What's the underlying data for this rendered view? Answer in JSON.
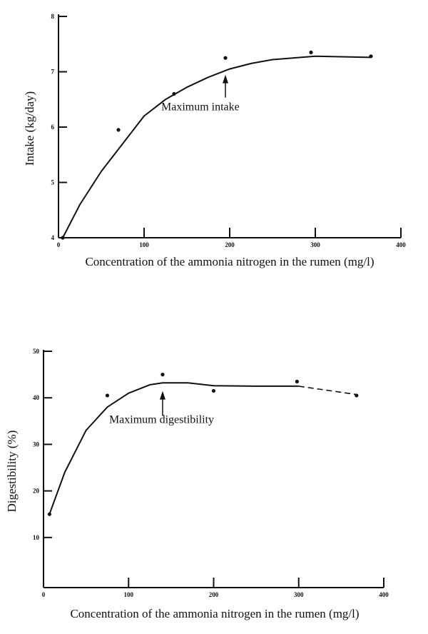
{
  "chart_data": [
    {
      "type": "scatter",
      "xlabel": "Concentration of the ammonia nitrogen in the rumen (mg/l)",
      "ylabel": "Intake (kg/day)",
      "xlim": [
        0,
        400
      ],
      "ylim": [
        4,
        8
      ],
      "x_ticks": [
        "0",
        "100",
        "200",
        "300",
        "400"
      ],
      "y_ticks": [
        "4",
        "5",
        "6",
        "7",
        "8"
      ],
      "grid": false,
      "points": {
        "x": [
          5,
          70,
          135,
          195,
          295,
          365
        ],
        "y": [
          4.0,
          5.95,
          6.6,
          7.25,
          7.35,
          7.28
        ]
      },
      "fitted_curve": {
        "x": [
          5,
          25,
          50,
          75,
          100,
          125,
          150,
          175,
          200,
          225,
          250,
          300,
          365
        ],
        "y": [
          4.0,
          4.6,
          5.2,
          5.7,
          6.2,
          6.5,
          6.72,
          6.9,
          7.05,
          7.15,
          7.22,
          7.28,
          7.26
        ]
      },
      "annotation": {
        "text": "Maximum intake",
        "x": 195,
        "y": 7.05
      }
    },
    {
      "type": "scatter",
      "xlabel": "Concentration of the ammonia nitrogen in the rumen (mg/l)",
      "ylabel": "Digestibility (%)",
      "xlim": [
        0,
        400
      ],
      "ylim": [
        0,
        50
      ],
      "x_ticks": [
        "0",
        "100",
        "200",
        "300",
        "400"
      ],
      "y_ticks": [
        "10",
        "20",
        "30",
        "40",
        "50"
      ],
      "grid": false,
      "points": {
        "x": [
          7,
          75,
          140,
          200,
          298,
          368
        ],
        "y": [
          15,
          40.5,
          45,
          41.5,
          43.5,
          40.5
        ]
      },
      "fitted_curve": {
        "x": [
          7,
          25,
          50,
          75,
          100,
          125,
          140,
          170,
          200,
          250,
          300,
          368
        ],
        "y": [
          15,
          24,
          33,
          38,
          41,
          42.8,
          43.2,
          43.2,
          42.6,
          42.5,
          42.5,
          40.7
        ]
      },
      "annotation": {
        "text": "Maximum digestibility",
        "x": 140,
        "y": 43
      }
    }
  ]
}
